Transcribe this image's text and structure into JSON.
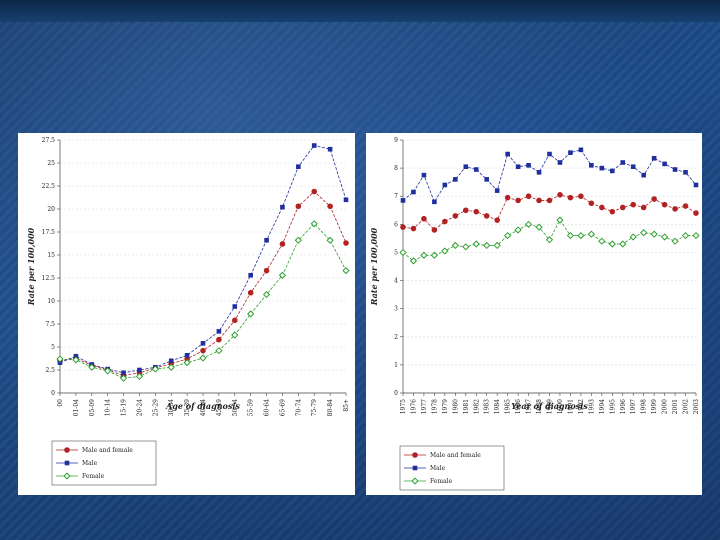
{
  "chart_data": [
    {
      "type": "line",
      "xlabel": "Age of diagnosis",
      "ylabel": "Rate per 100,000",
      "ylim": [
        0,
        27.5
      ],
      "yticks": [
        0,
        2.5,
        5,
        7.5,
        10,
        12.5,
        15,
        17.5,
        20,
        22.5,
        25,
        27.5
      ],
      "grid": true,
      "legend_placement": "bottom-left",
      "categories": [
        "00",
        "01-04",
        "05-09",
        "10-14",
        "15-19",
        "20-24",
        "25-29",
        "30-34",
        "35-39",
        "40-44",
        "45-49",
        "50-54",
        "55-59",
        "60-64",
        "65-69",
        "70-74",
        "75-79",
        "80-84",
        "85+"
      ],
      "series": [
        {
          "name": "Male and female",
          "color": "#b22222",
          "marker": "circle",
          "values": [
            3.5,
            3.8,
            3.0,
            2.5,
            1.9,
            2.2,
            2.7,
            3.2,
            3.7,
            4.6,
            5.8,
            7.9,
            10.9,
            13.3,
            16.2,
            20.3,
            21.9,
            20.3,
            16.3
          ]
        },
        {
          "name": "Male",
          "color": "#1f2f9e",
          "marker": "square",
          "values": [
            3.3,
            4.0,
            3.1,
            2.6,
            2.2,
            2.5,
            2.8,
            3.5,
            4.1,
            5.4,
            6.7,
            9.4,
            12.8,
            16.6,
            20.2,
            24.6,
            26.9,
            26.5,
            21.0
          ]
        },
        {
          "name": "Female",
          "color": "#2ea02e",
          "marker": "diamond",
          "values": [
            3.7,
            3.6,
            2.8,
            2.4,
            1.6,
            1.8,
            2.6,
            2.8,
            3.3,
            3.8,
            4.6,
            6.3,
            8.6,
            10.7,
            12.8,
            16.6,
            18.4,
            16.6,
            13.3
          ]
        }
      ]
    },
    {
      "type": "line",
      "xlabel": "Year of diagnosis",
      "ylabel": "Rate per 100,000",
      "ylim": [
        0,
        9
      ],
      "yticks": [
        0,
        1,
        2,
        3,
        4,
        5,
        6,
        7,
        8,
        9
      ],
      "grid": true,
      "legend_placement": "bottom-left",
      "categories": [
        "1975",
        "1976",
        "1977",
        "1978",
        "1979",
        "1980",
        "1981",
        "1982",
        "1983",
        "1984",
        "1985",
        "1986",
        "1987",
        "1988",
        "1989",
        "1990",
        "1991",
        "1992",
        "1993",
        "1994",
        "1995",
        "1996",
        "1997",
        "1998",
        "1999",
        "2000",
        "2001",
        "2002",
        "2003"
      ],
      "series": [
        {
          "name": "Male and female",
          "color": "#b22222",
          "marker": "circle",
          "values": [
            5.9,
            5.85,
            6.2,
            5.8,
            6.1,
            6.3,
            6.5,
            6.45,
            6.3,
            6.15,
            6.95,
            6.85,
            7.0,
            6.85,
            6.85,
            7.05,
            6.95,
            7.0,
            6.75,
            6.6,
            6.45,
            6.6,
            6.7,
            6.6,
            6.9,
            6.7,
            6.55,
            6.65,
            6.4
          ]
        },
        {
          "name": "Male",
          "color": "#1f2f9e",
          "marker": "square",
          "values": [
            6.85,
            7.15,
            7.75,
            6.8,
            7.4,
            7.6,
            8.05,
            7.95,
            7.6,
            7.2,
            8.5,
            8.05,
            8.1,
            7.85,
            8.5,
            8.2,
            8.55,
            8.65,
            8.1,
            8.0,
            7.9,
            8.2,
            8.05,
            7.75,
            8.35,
            8.15,
            7.95,
            7.85,
            7.4
          ]
        },
        {
          "name": "Female",
          "color": "#2ea02e",
          "marker": "diamond",
          "values": [
            5.0,
            4.7,
            4.9,
            4.9,
            5.05,
            5.25,
            5.2,
            5.3,
            5.25,
            5.25,
            5.6,
            5.8,
            6.0,
            5.9,
            5.45,
            6.15,
            5.6,
            5.6,
            5.65,
            5.4,
            5.3,
            5.3,
            5.55,
            5.7,
            5.65,
            5.55,
            5.4,
            5.6,
            5.6
          ]
        }
      ]
    }
  ]
}
